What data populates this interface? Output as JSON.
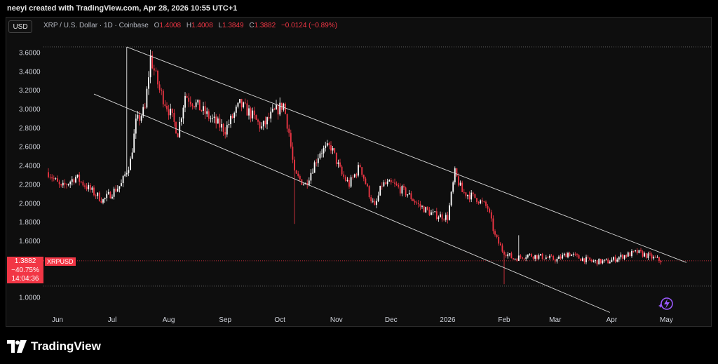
{
  "header": {
    "credit": "neeyi created with TradingView.com, Apr 28, 2026 10:55 UTC+1"
  },
  "toolbar": {
    "currency_button": "USD"
  },
  "legend": {
    "symbol": "XRP / U.S. Dollar · 1D · Coinbase",
    "open_label": "O",
    "open": "1.4008",
    "high_label": "H",
    "high": "1.4008",
    "low_label": "L",
    "low": "1.3849",
    "close_label": "C",
    "close": "1.3882",
    "change": "−0.0124 (−0.89%)"
  },
  "price_badge": {
    "price": "1.3882",
    "change_pct": "−40.75%",
    "countdown": "14:04:36",
    "symbol": "XRPUSD"
  },
  "colors": {
    "up": "#ffffff",
    "down": "#f23645",
    "accent": "#f23645",
    "trendline": "#d9d9d9"
  },
  "footer": {
    "brand": "TradingView"
  },
  "icons": {
    "logo": "tradingview-logo-icon",
    "bolt": "lightning-bolt-icon"
  },
  "chart_data": {
    "type": "candlestick",
    "title": "XRP / U.S. Dollar · 1D · Coinbase",
    "ylim": [
      0.85,
      3.78
    ],
    "yticks": [
      "3.6000",
      "3.4000",
      "3.2000",
      "3.0000",
      "2.8000",
      "2.6000",
      "2.4000",
      "2.2000",
      "2.0000",
      "1.8000",
      "1.6000",
      "1.0000"
    ],
    "xticks": [
      "Jun",
      "Jul",
      "Aug",
      "Sep",
      "Oct",
      "Nov",
      "Dec",
      "2026",
      "Feb",
      "Mar",
      "Apr",
      "May"
    ],
    "x_tick_days": [
      0,
      30,
      61,
      92,
      122,
      153,
      183,
      214,
      245,
      273,
      304,
      334
    ],
    "start_day": -5,
    "end_day": 331,
    "price_line": 1.3882,
    "horizontal_levels": [
      3.66,
      1.12
    ],
    "anchors": [
      [
        -5,
        2.33
      ],
      [
        2,
        2.16
      ],
      [
        10,
        2.28
      ],
      [
        18,
        2.14
      ],
      [
        25,
        2.03
      ],
      [
        35,
        2.2
      ],
      [
        40,
        2.45
      ],
      [
        43,
        2.85
      ],
      [
        48,
        3.0
      ],
      [
        51,
        3.55
      ],
      [
        56,
        3.2
      ],
      [
        62,
        2.95
      ],
      [
        66,
        2.75
      ],
      [
        70,
        3.15
      ],
      [
        76,
        3.05
      ],
      [
        84,
        2.9
      ],
      [
        92,
        2.78
      ],
      [
        100,
        3.05
      ],
      [
        106,
        2.95
      ],
      [
        112,
        2.8
      ],
      [
        118,
        2.95
      ],
      [
        124,
        3.05
      ],
      [
        127,
        2.75
      ],
      [
        130,
        2.3
      ],
      [
        136,
        2.2
      ],
      [
        144,
        2.55
      ],
      [
        150,
        2.6
      ],
      [
        156,
        2.3
      ],
      [
        160,
        2.2
      ],
      [
        166,
        2.4
      ],
      [
        170,
        2.15
      ],
      [
        174,
        1.95
      ],
      [
        178,
        2.2
      ],
      [
        184,
        2.2
      ],
      [
        192,
        2.1
      ],
      [
        198,
        1.98
      ],
      [
        206,
        1.88
      ],
      [
        214,
        1.85
      ],
      [
        218,
        2.32
      ],
      [
        222,
        2.12
      ],
      [
        230,
        2.05
      ],
      [
        236,
        1.95
      ],
      [
        240,
        1.65
      ],
      [
        244,
        1.5
      ],
      [
        250,
        1.41
      ],
      [
        258,
        1.45
      ],
      [
        266,
        1.43
      ],
      [
        274,
        1.4
      ],
      [
        280,
        1.47
      ],
      [
        286,
        1.42
      ],
      [
        294,
        1.38
      ],
      [
        302,
        1.38
      ],
      [
        310,
        1.44
      ],
      [
        318,
        1.48
      ],
      [
        331,
        1.39
      ]
    ],
    "wick_extremes": [
      [
        38,
        3.66
      ],
      [
        245,
        1.14
      ],
      [
        130,
        1.78
      ],
      [
        253,
        1.66
      ]
    ],
    "trendlines": [
      {
        "from": [
          38,
          3.66
        ],
        "to": [
          345,
          1.37
        ]
      },
      {
        "from": [
          20,
          3.16
        ],
        "to": [
          303,
          0.84
        ]
      }
    ]
  }
}
